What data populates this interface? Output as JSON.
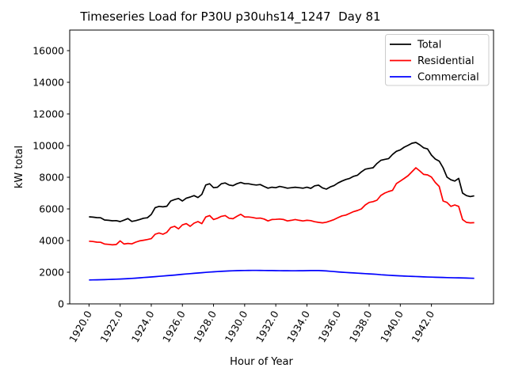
{
  "chart_data": {
    "type": "line",
    "title": "Timeseries Load for P30U p30uhs14_1247  Day 81",
    "xlabel": "Hour of Year",
    "ylabel": "kW total",
    "grid": false,
    "background_color": "#ffffff",
    "legend": {
      "position": "upper right",
      "entries": [
        "Total",
        "Residential",
        "Commercial"
      ]
    },
    "xlim": [
      1918.76,
      1945.99
    ],
    "ylim": [
      0,
      17300
    ],
    "xticks": {
      "values": [
        1920,
        1922,
        1924,
        1926,
        1928,
        1930,
        1932,
        1934,
        1936,
        1938,
        1940,
        1942
      ],
      "labels": [
        "1920.0",
        "1922.0",
        "1924.0",
        "1926.0",
        "1928.0",
        "1930.0",
        "1932.0",
        "1934.0",
        "1936.0",
        "1938.0",
        "1940.0",
        "1942.0"
      ]
    },
    "yticks": {
      "values": [
        0,
        2000,
        4000,
        6000,
        8000,
        10000,
        12000,
        14000,
        16000
      ],
      "labels": [
        "0",
        "2000",
        "4000",
        "6000",
        "8000",
        "10000",
        "12000",
        "14000",
        "16000"
      ]
    },
    "x": [
      1920.0,
      1920.25,
      1920.5,
      1920.75,
      1921.0,
      1921.25,
      1921.5,
      1921.75,
      1922.0,
      1922.25,
      1922.5,
      1922.75,
      1923.0,
      1923.25,
      1923.5,
      1923.75,
      1924.0,
      1924.25,
      1924.5,
      1924.75,
      1925.0,
      1925.25,
      1925.5,
      1925.75,
      1926.0,
      1926.25,
      1926.5,
      1926.75,
      1927.0,
      1927.25,
      1927.5,
      1927.75,
      1928.0,
      1928.25,
      1928.5,
      1928.75,
      1929.0,
      1929.25,
      1929.5,
      1929.75,
      1930.0,
      1930.25,
      1930.5,
      1930.75,
      1931.0,
      1931.25,
      1931.5,
      1931.75,
      1932.0,
      1932.25,
      1932.5,
      1932.75,
      1933.0,
      1933.25,
      1933.5,
      1933.75,
      1934.0,
      1934.25,
      1934.5,
      1934.75,
      1935.0,
      1935.25,
      1935.5,
      1935.75,
      1936.0,
      1936.25,
      1936.5,
      1936.75,
      1937.0,
      1937.25,
      1937.5,
      1937.75,
      1938.0,
      1938.25,
      1938.5,
      1938.75,
      1939.0,
      1939.25,
      1939.5,
      1939.75,
      1940.0,
      1940.25,
      1940.5,
      1940.75,
      1941.0,
      1941.25,
      1941.5,
      1941.75,
      1942.0,
      1942.25,
      1942.5,
      1942.75,
      1943.0,
      1943.25,
      1943.5,
      1943.75,
      1944.0,
      1944.25,
      1944.5,
      1944.75
    ],
    "series": [
      {
        "name": "Total",
        "color": "#000000",
        "values": [
          5500,
          5480,
          5450,
          5440,
          5300,
          5280,
          5250,
          5260,
          5200,
          5290,
          5390,
          5210,
          5260,
          5330,
          5410,
          5440,
          5650,
          6080,
          6160,
          6130,
          6170,
          6500,
          6590,
          6660,
          6500,
          6680,
          6750,
          6840,
          6720,
          6920,
          7510,
          7590,
          7340,
          7370,
          7590,
          7640,
          7510,
          7470,
          7590,
          7670,
          7590,
          7590,
          7540,
          7510,
          7540,
          7420,
          7310,
          7370,
          7340,
          7420,
          7370,
          7310,
          7340,
          7370,
          7340,
          7310,
          7370,
          7300,
          7460,
          7500,
          7330,
          7250,
          7390,
          7480,
          7640,
          7760,
          7860,
          7930,
          8060,
          8130,
          8340,
          8510,
          8560,
          8600,
          8870,
          9070,
          9130,
          9180,
          9440,
          9640,
          9730,
          9900,
          10020,
          10150,
          10200,
          10050,
          9860,
          9790,
          9400,
          9150,
          9020,
          8600,
          8010,
          7840,
          7760,
          7930,
          7000,
          6840,
          6780,
          6830
        ]
      },
      {
        "name": "Residential",
        "color": "#ff0000",
        "values": [
          3960,
          3940,
          3900,
          3890,
          3780,
          3760,
          3730,
          3750,
          3980,
          3780,
          3820,
          3790,
          3900,
          3980,
          4020,
          4065,
          4120,
          4400,
          4480,
          4400,
          4520,
          4820,
          4900,
          4740,
          4990,
          5070,
          4900,
          5100,
          5200,
          5070,
          5490,
          5580,
          5330,
          5410,
          5530,
          5580,
          5410,
          5380,
          5530,
          5660,
          5490,
          5490,
          5460,
          5410,
          5420,
          5360,
          5240,
          5330,
          5340,
          5360,
          5330,
          5240,
          5280,
          5330,
          5280,
          5240,
          5280,
          5260,
          5190,
          5150,
          5120,
          5160,
          5240,
          5330,
          5450,
          5560,
          5610,
          5720,
          5830,
          5900,
          6000,
          6250,
          6410,
          6460,
          6550,
          6850,
          7000,
          7100,
          7170,
          7600,
          7760,
          7925,
          8100,
          8350,
          8600,
          8400,
          8180,
          8150,
          8010,
          7670,
          7420,
          6500,
          6410,
          6160,
          6250,
          6160,
          5330,
          5150,
          5120,
          5130
        ]
      },
      {
        "name": "Commercial",
        "color": "#0000ff",
        "values": [
          1510,
          1515,
          1520,
          1525,
          1530,
          1540,
          1550,
          1560,
          1570,
          1580,
          1595,
          1610,
          1625,
          1645,
          1665,
          1680,
          1700,
          1720,
          1740,
          1760,
          1780,
          1800,
          1820,
          1845,
          1870,
          1890,
          1910,
          1930,
          1950,
          1970,
          1990,
          2010,
          2025,
          2040,
          2055,
          2070,
          2080,
          2090,
          2100,
          2105,
          2110,
          2112,
          2115,
          2115,
          2113,
          2110,
          2108,
          2105,
          2100,
          2098,
          2095,
          2092,
          2090,
          2090,
          2092,
          2095,
          2100,
          2105,
          2110,
          2105,
          2095,
          2080,
          2060,
          2040,
          2020,
          2000,
          1985,
          1970,
          1955,
          1940,
          1925,
          1910,
          1895,
          1880,
          1865,
          1840,
          1825,
          1810,
          1795,
          1782,
          1770,
          1758,
          1748,
          1738,
          1728,
          1718,
          1708,
          1698,
          1690,
          1682,
          1675,
          1668,
          1660,
          1654,
          1648,
          1642,
          1636,
          1630,
          1622,
          1615
        ]
      }
    ]
  }
}
